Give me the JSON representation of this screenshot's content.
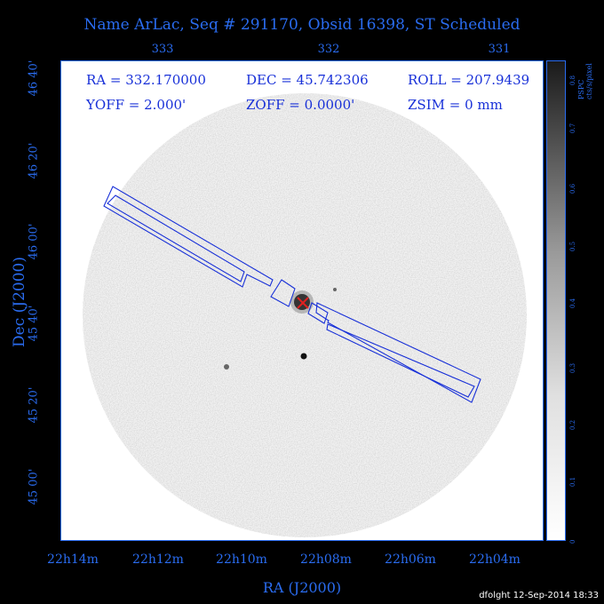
{
  "title": "Name ArLac, Seq # 291170, Obsid 16398, ST Scheduled",
  "top_axis_ticks": [
    "333",
    "332",
    "331"
  ],
  "bottom_axis_ticks": [
    "22h14m",
    "22h12m",
    "22h10m",
    "22h08m",
    "22h06m",
    "22h04m"
  ],
  "x_axis_label": "RA (J2000)",
  "y_axis_ticks": [
    "46 40'",
    "46 20'",
    "46 00'",
    "45 40'",
    "45 20'",
    "45 00'"
  ],
  "y_axis_label": "Dec (J2000)",
  "params": {
    "ra": "RA = 332.170000",
    "dec": "DEC = 45.742306",
    "roll": "ROLL = 207.9439",
    "yoff": "YOFF =   2.000'",
    "zoff": "ZOFF =  0.0000'",
    "zsim": "ZSIM = 0 mm"
  },
  "colorbar": {
    "label": "PSPC cts/s/pixel",
    "ticks": [
      "0",
      "0.1",
      "0.2",
      "0.3",
      "0.4",
      "0.5",
      "0.6",
      "0.7",
      "0.8"
    ]
  },
  "footer": "dfolght 12-Sep-2014 18:33",
  "colors": {
    "axis": "#2a6cf0",
    "overlay": "#1830d8",
    "marker": "#e02020"
  }
}
